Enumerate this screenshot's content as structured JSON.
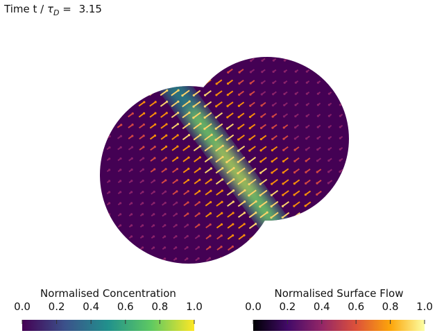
{
  "time_label": {
    "prefix": "Time t / ",
    "symbol": "τ",
    "subscript": "D",
    "equals": " = ",
    "value": 3.15
  },
  "colorbars": [
    {
      "title": "Normalised Concentration",
      "range": [
        0,
        1
      ],
      "colors": [
        "#440154",
        "#3b528b",
        "#21918c",
        "#5ec962",
        "#fde725"
      ],
      "ticks": [
        {
          "value": 0,
          "label": "0.0"
        },
        {
          "value": 0.2,
          "label": "0.2"
        },
        {
          "value": 0.4,
          "label": "0.4"
        },
        {
          "value": 0.6,
          "label": "0.6"
        },
        {
          "value": 0.8,
          "label": "0.8"
        },
        {
          "value": 1,
          "label": "1.0"
        }
      ]
    },
    {
      "title": "Normalised Surface Flow",
      "range": [
        0,
        1
      ],
      "colors": [
        "#000004",
        "#420a68",
        "#932667",
        "#dd513a",
        "#fca50a",
        "#fcffa4"
      ],
      "ticks": [
        {
          "value": 0,
          "label": "0.0"
        },
        {
          "value": 0.2,
          "label": "0.2"
        },
        {
          "value": 0.4,
          "label": "0.4"
        },
        {
          "value": 0.6,
          "label": "0.6"
        },
        {
          "value": 0.8,
          "label": "0.8"
        },
        {
          "value": 1,
          "label": "1.0"
        }
      ]
    }
  ]
}
